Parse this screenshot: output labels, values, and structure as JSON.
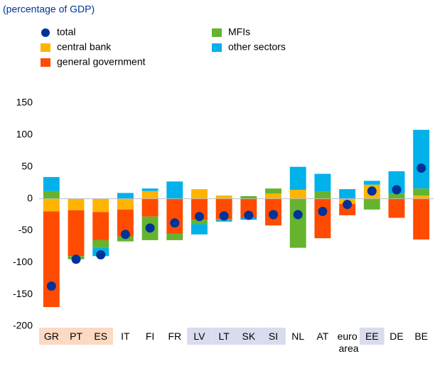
{
  "chart_data": {
    "type": "bar",
    "stacked": true,
    "subtitle": "(percentage of GDP)",
    "categories": [
      "GR",
      "PT",
      "ES",
      "IT",
      "FI",
      "FR",
      "LV",
      "LT",
      "SK",
      "SI",
      "NL",
      "AT",
      "euro area",
      "EE",
      "DE",
      "BE"
    ],
    "category_highlight": [
      "#fbd9c3",
      "#fbd9c3",
      "#fbd9c3",
      null,
      null,
      null,
      "#d9dbee",
      "#d9dbee",
      "#d9dbee",
      "#d9dbee",
      null,
      null,
      null,
      "#d9dbee",
      null,
      null
    ],
    "category_label_colors": [
      "#8a5a3c",
      "#8a5a3c",
      "#8a5a3c",
      "#000000",
      "#000000",
      "#000000",
      "#5a5f8f",
      "#5a5f8f",
      "#5a5f8f",
      "#5a5f8f",
      "#000000",
      "#000000",
      "#000000",
      "#5a5f8f",
      "#000000",
      "#000000"
    ],
    "series": [
      {
        "name": "total",
        "color": "#003299",
        "marker": "dot",
        "values": [
          -137,
          -95,
          -88,
          -56,
          -46,
          -38,
          -28,
          -27,
          -26,
          -25,
          -25,
          -20,
          -9,
          12,
          14,
          48
        ]
      },
      {
        "name": "central bank",
        "color": "#ffb400",
        "values": [
          -20,
          -18,
          -21,
          -17,
          12,
          0,
          15,
          5,
          0,
          8,
          14,
          0,
          -8,
          22,
          0,
          5
        ]
      },
      {
        "name": "general government",
        "color": "#ff4b00",
        "values": [
          -150,
          -72,
          -44,
          -42,
          -28,
          -55,
          -33,
          -32,
          -30,
          -42,
          0,
          -62,
          -18,
          0,
          -30,
          -64
        ]
      },
      {
        "name": "MFIs",
        "color": "#65b32e",
        "values": [
          12,
          -5,
          -12,
          -8,
          -37,
          -10,
          -7,
          -2,
          4,
          8,
          -77,
          11,
          0,
          -17,
          8,
          11
        ]
      },
      {
        "name": "other sectors",
        "color": "#00b1ea",
        "values": [
          22,
          0,
          -13,
          9,
          4,
          27,
          -16,
          -2,
          -3,
          0,
          36,
          28,
          15,
          6,
          35,
          92
        ]
      }
    ],
    "ylim": [
      -200,
      150
    ],
    "yticks": [
      -200,
      -150,
      -100,
      -50,
      0,
      50,
      100,
      150
    ],
    "grid": false
  }
}
